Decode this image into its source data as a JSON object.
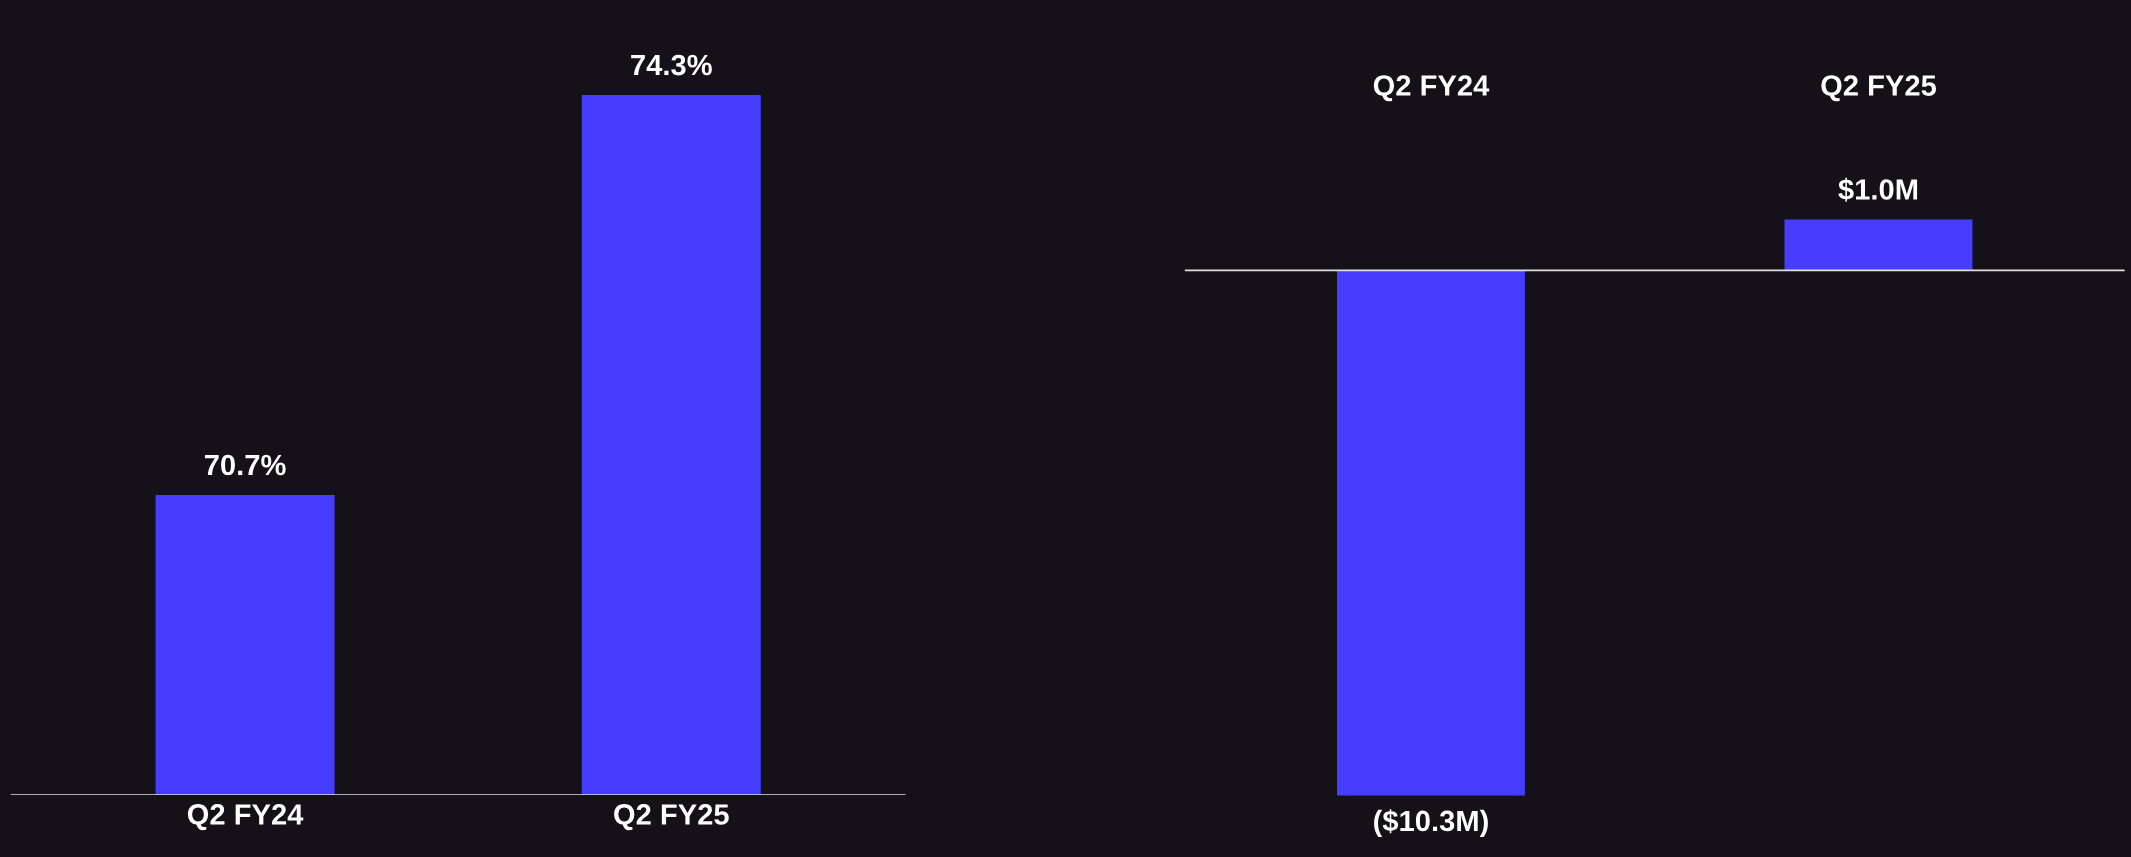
{
  "chart_data": [
    {
      "type": "bar",
      "categories": [
        "Q2 FY24",
        "Q2 FY25"
      ],
      "values": [
        70.7,
        74.3
      ],
      "color": "#473dff",
      "value_labels": [
        "70.7%",
        "74.3%"
      ],
      "tick_labels": "x",
      "grid": false,
      "legend": false
    },
    {
      "type": "bar",
      "categories": [
        "Q2 FY24",
        "Q2 FY25"
      ],
      "values": [
        -10.3,
        1.0
      ],
      "color": "#473dff",
      "value_labels": [
        "($10.3M)",
        "$1.0M"
      ],
      "tick_labels": "x",
      "grid": false,
      "legend": false
    }
  ]
}
